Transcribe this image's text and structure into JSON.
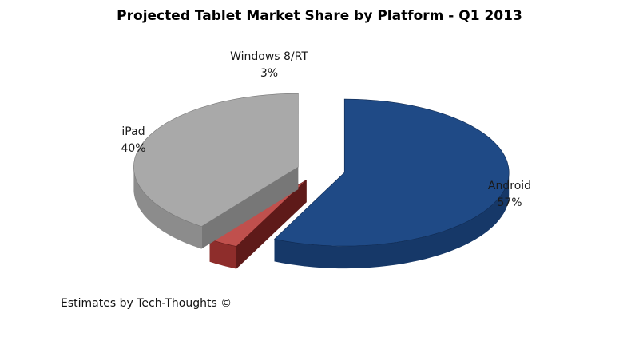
{
  "chart_data": {
    "type": "pie",
    "style": "3d-exploded",
    "title": "Projected Tablet Market Share by Platform - Q1 2013",
    "slices": [
      {
        "label": "Android",
        "value": 57,
        "value_label": "57%",
        "color": "#1f4a86",
        "side_color": "#163868",
        "edge_color": "#0f2a52"
      },
      {
        "label": "Windows 8/RT",
        "value": 3,
        "value_label": "3%",
        "color": "#c0504d",
        "side_color": "#8e2d2b",
        "edge_color": "#5e1a19"
      },
      {
        "label": "iPad",
        "value": 40,
        "value_label": "40%",
        "color": "#a9a9a9",
        "side_color": "#8c8c8c",
        "edge_color": "#777777"
      }
    ]
  },
  "footer": {
    "credit": "Estimates by Tech-Thoughts ©"
  }
}
